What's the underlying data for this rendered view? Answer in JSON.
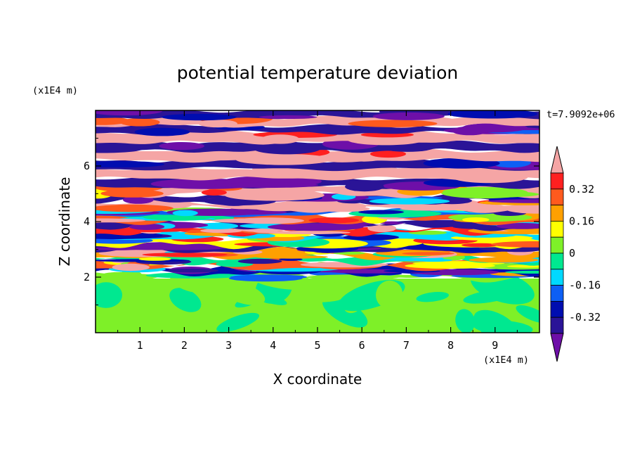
{
  "chart_data": {
    "type": "heatmap",
    "title": "potential temperature deviation",
    "xlabel": "X coordinate",
    "ylabel": "Z coordinate",
    "x_unit": "(x1E4 m)",
    "y_unit": "(x1E4 m)",
    "time_label": "t=7.9092e+06",
    "xlim": [
      0,
      10
    ],
    "ylim": [
      0,
      8
    ],
    "x_ticks": [
      1,
      2,
      3,
      4,
      5,
      6,
      7,
      8,
      9
    ],
    "y_ticks": [
      2,
      4,
      6
    ],
    "colorbar": {
      "levels": [
        -0.4,
        -0.32,
        -0.24,
        -0.16,
        -0.08,
        0,
        0.08,
        0.16,
        0.24,
        0.32,
        0.4
      ],
      "colors": [
        "#6e0fa8",
        "#2a1497",
        "#000db0",
        "#0d5ff5",
        "#00d9ff",
        "#00e890",
        "#7ef028",
        "#ffff00",
        "#ffa000",
        "#ff5a1e",
        "#ff2020",
        "#f5a5a5"
      ],
      "labels": [
        {
          "value": 0.32,
          "text": "0.32"
        },
        {
          "value": 0.16,
          "text": "0.16"
        },
        {
          "value": 0,
          "text": "0"
        },
        {
          "value": -0.16,
          "text": "-0.16"
        },
        {
          "value": -0.32,
          "text": "-0.32"
        }
      ],
      "extend": "both"
    },
    "bands": [
      {
        "z0": 0.0,
        "z1": 1.95,
        "value": 0.0,
        "pattern": "stable"
      },
      {
        "z0": 1.95,
        "z1": 2.15,
        "value": 0.05,
        "pattern": "mixed"
      },
      {
        "z0": 2.15,
        "z1": 2.35,
        "value": -0.3,
        "pattern": "mixed"
      },
      {
        "z0": 2.35,
        "z1": 2.55,
        "value": 0.3,
        "pattern": "mixed"
      },
      {
        "z0": 2.55,
        "z1": 2.75,
        "value": -0.05,
        "pattern": "mixed"
      },
      {
        "z0": 2.75,
        "z1": 2.95,
        "value": 0.2,
        "pattern": "mixed"
      },
      {
        "z0": 2.95,
        "z1": 3.15,
        "value": -0.35,
        "pattern": "mixed"
      },
      {
        "z0": 3.15,
        "z1": 3.4,
        "value": 0.1,
        "pattern": "mixed"
      },
      {
        "z0": 3.4,
        "z1": 3.6,
        "value": -0.1,
        "pattern": "mixed"
      },
      {
        "z0": 3.6,
        "z1": 3.8,
        "value": 0.35,
        "pattern": "mixed"
      },
      {
        "z0": 3.8,
        "z1": 4.0,
        "value": -0.35,
        "pattern": "mixed"
      },
      {
        "z0": 4.0,
        "z1": 4.25,
        "value": 0.25,
        "pattern": "mixed"
      },
      {
        "z0": 4.25,
        "z1": 4.45,
        "value": -0.2,
        "pattern": "mixed"
      },
      {
        "z0": 4.45,
        "z1": 4.7,
        "value": 0.4,
        "pattern": "mixed"
      },
      {
        "z0": 4.7,
        "z1": 4.95,
        "value": -0.4,
        "pattern": "mixed"
      },
      {
        "z0": 4.95,
        "z1": 5.25,
        "value": 0.4,
        "pattern": "mixed"
      },
      {
        "z0": 5.25,
        "z1": 5.55,
        "value": -0.4,
        "pattern": "layered"
      },
      {
        "z0": 5.55,
        "z1": 5.9,
        "value": 0.4,
        "pattern": "layered"
      },
      {
        "z0": 5.9,
        "z1": 6.2,
        "value": -0.4,
        "pattern": "layered"
      },
      {
        "z0": 6.2,
        "z1": 6.55,
        "value": 0.4,
        "pattern": "layered"
      },
      {
        "z0": 6.55,
        "z1": 6.85,
        "value": -0.4,
        "pattern": "layered"
      },
      {
        "z0": 6.85,
        "z1": 7.2,
        "value": 0.4,
        "pattern": "layered"
      },
      {
        "z0": 7.2,
        "z1": 7.45,
        "value": -0.4,
        "pattern": "layered"
      },
      {
        "z0": 7.45,
        "z1": 7.75,
        "value": 0.4,
        "pattern": "layered"
      },
      {
        "z0": 7.75,
        "z1": 8.0,
        "value": -0.4,
        "pattern": "layered"
      }
    ]
  }
}
